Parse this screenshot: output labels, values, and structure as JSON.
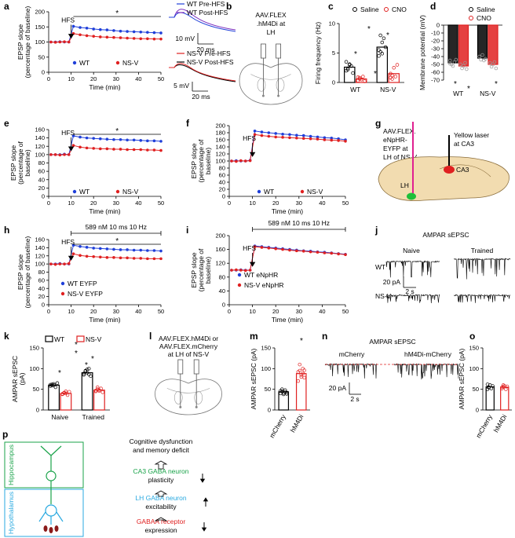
{
  "chart_data": [
    {
      "type": "line",
      "label": "a",
      "xlabel": "Time (min)",
      "ylabel": [
        "EPSP slope",
        "(percentage of baseline)"
      ],
      "event_label": "HFS",
      "significance": "*",
      "xlim": [
        0,
        50
      ],
      "xticks": [
        0,
        10,
        20,
        30,
        40,
        50
      ],
      "ylim": [
        0,
        200
      ],
      "yticks": [
        0,
        50,
        100,
        150,
        200
      ],
      "x": [
        1,
        3,
        5,
        7,
        9,
        11,
        14,
        17,
        20,
        23,
        26,
        29,
        32,
        35,
        38,
        41,
        44,
        47,
        50
      ],
      "series": [
        {
          "name": "WT",
          "color": "#1f3fd9",
          "values": [
            100,
            100,
            101,
            100,
            100,
            152,
            148,
            146,
            143,
            141,
            140,
            138,
            136,
            135,
            134,
            133,
            132,
            131,
            130
          ]
        },
        {
          "name": "NS-V",
          "color": "#e02020",
          "values": [
            100,
            99,
            100,
            101,
            100,
            128,
            124,
            121,
            119,
            117,
            116,
            115,
            114,
            113,
            112,
            111,
            111,
            110,
            110
          ]
        }
      ]
    },
    {
      "type": "bar",
      "label": "c",
      "ylabel": [
        "Firing frequency (Hz)"
      ],
      "categories": [
        "WT",
        "NS-V"
      ],
      "ylim": [
        0,
        10
      ],
      "yticks": [
        0,
        5,
        10
      ],
      "annotations": [
        "*",
        "*",
        "*",
        "*"
      ],
      "series": [
        {
          "name": "Saline",
          "color": "#000000",
          "values": [
            2.6,
            6.0
          ],
          "points": [
            [
              2.0,
              2.4,
              3.0,
              2.8,
              1.6,
              3.5,
              2.2,
              3.1
            ],
            [
              4.5,
              5.2,
              6.8,
              7.5,
              6.0,
              5.5,
              8.0,
              4.9
            ]
          ]
        },
        {
          "name": "CNO",
          "color": "#e02020",
          "values": [
            0.6,
            1.5
          ],
          "points": [
            [
              0.3,
              0.8,
              0.5,
              1.0,
              0.2,
              0.9,
              0.6
            ],
            [
              0.8,
              1.2,
              2.5,
              1.0,
              3.0,
              1.5,
              0.6
            ]
          ]
        }
      ]
    },
    {
      "type": "bar",
      "label": "d",
      "ylabel": [
        "Membrane potential (mV)"
      ],
      "categories": [
        "WT",
        "NS-V"
      ],
      "ylim": [
        -70,
        0
      ],
      "yticks": [
        0,
        -10,
        -20,
        -30,
        -40,
        -50,
        -60,
        -70
      ],
      "annotations": [
        "*",
        "*",
        "*"
      ],
      "series": [
        {
          "name": "Saline",
          "color": "#000000",
          "values": [
            -48,
            -42
          ],
          "points": [
            [
              -45,
              -50,
              -52,
              -47,
              -44,
              -49
            ],
            [
              -40,
              -44,
              -38,
              -45,
              -43
            ]
          ]
        },
        {
          "name": "CNO",
          "color": "#e02020",
          "values": [
            -52,
            -50
          ],
          "points": [
            [
              -50,
              -55,
              -52,
              -48,
              -56
            ],
            [
              -48,
              -53,
              -50,
              -47,
              -55
            ]
          ]
        }
      ]
    },
    {
      "type": "line",
      "label": "e",
      "xlabel": "Time (min)",
      "ylabel": [
        "EPSP slope",
        "(percentage of",
        "baseline)"
      ],
      "event_label": "HFS",
      "significance": "*",
      "xlim": [
        0,
        50
      ],
      "xticks": [
        0,
        10,
        20,
        30,
        40,
        50
      ],
      "ylim": [
        0,
        160
      ],
      "yticks": [
        0,
        20,
        40,
        60,
        80,
        100,
        120,
        140,
        160
      ],
      "x": [
        1,
        3,
        5,
        7,
        9,
        11,
        14,
        17,
        20,
        23,
        26,
        29,
        32,
        35,
        38,
        41,
        44,
        47,
        50
      ],
      "series": [
        {
          "name": "WT",
          "color": "#1f3fd9",
          "values": [
            100,
            100,
            100,
            101,
            100,
            145,
            142,
            140,
            139,
            138,
            137,
            136,
            136,
            135,
            135,
            134,
            133,
            133,
            132
          ]
        },
        {
          "name": "NS-V",
          "color": "#e02020",
          "values": [
            100,
            100,
            99,
            100,
            100,
            122,
            118,
            116,
            115,
            114,
            114,
            113,
            113,
            112,
            112,
            112,
            111,
            111,
            110
          ]
        }
      ]
    },
    {
      "type": "line",
      "label": "f",
      "xlabel": "Time (min)",
      "ylabel": [
        "EPSP slope",
        "(percentage of",
        "baseline)"
      ],
      "event_label": "HFS",
      "xlim": [
        0,
        50
      ],
      "xticks": [
        0,
        10,
        20,
        30,
        40,
        50
      ],
      "ylim": [
        0,
        200
      ],
      "yticks": [
        0,
        20,
        40,
        60,
        80,
        100,
        120,
        140,
        160,
        180,
        200
      ],
      "x": [
        1,
        3,
        5,
        7,
        9,
        11,
        14,
        17,
        20,
        23,
        26,
        29,
        32,
        35,
        38,
        41,
        44,
        47,
        50
      ],
      "series": [
        {
          "name": "WT",
          "color": "#1f3fd9",
          "values": [
            100,
            101,
            100,
            100,
            102,
            185,
            182,
            180,
            178,
            176,
            175,
            173,
            172,
            170,
            168,
            166,
            165,
            163,
            160
          ]
        },
        {
          "name": "NS-V",
          "color": "#e02020",
          "values": [
            100,
            99,
            101,
            100,
            101,
            175,
            172,
            170,
            168,
            167,
            166,
            165,
            164,
            163,
            162,
            160,
            159,
            158,
            156
          ]
        }
      ]
    },
    {
      "type": "line",
      "label": "h",
      "xlabel": "Time (min)",
      "ylabel": [
        "EPSP slope",
        "(percentage of baseline)"
      ],
      "event_label": "HFS",
      "significance": "*",
      "stimulus": "589 nM 10 ms 10 Hz",
      "xlim": [
        0,
        50
      ],
      "xticks": [
        0,
        10,
        20,
        30,
        40,
        50
      ],
      "ylim": [
        0,
        160
      ],
      "yticks": [
        0,
        20,
        40,
        60,
        80,
        100,
        120,
        140,
        160
      ],
      "x": [
        1,
        3,
        5,
        7,
        9,
        11,
        14,
        17,
        20,
        23,
        26,
        29,
        32,
        35,
        38,
        41,
        44,
        47,
        50
      ],
      "series": [
        {
          "name": "WT EYFP",
          "color": "#1f3fd9",
          "values": [
            100,
            100,
            101,
            100,
            100,
            146,
            143,
            141,
            139,
            138,
            137,
            136,
            135,
            135,
            134,
            134,
            133,
            133,
            132
          ]
        },
        {
          "name": "NS-V EYFP",
          "color": "#e02020",
          "values": [
            100,
            99,
            100,
            100,
            101,
            125,
            121,
            119,
            118,
            117,
            116,
            116,
            115,
            115,
            114,
            114,
            113,
            113,
            113
          ]
        }
      ]
    },
    {
      "type": "line",
      "label": "i",
      "xlabel": "Time (min)",
      "ylabel": [
        "EPSP slope",
        "(percentage of",
        "baseline)"
      ],
      "event_label": "HFS",
      "stimulus": "589 nM 10 ms 10 Hz",
      "xlim": [
        0,
        50
      ],
      "xticks": [
        0,
        10,
        20,
        30,
        40,
        50
      ],
      "ylim": [
        0,
        200
      ],
      "yticks": [
        0,
        40,
        80,
        120,
        160,
        200
      ],
      "x": [
        1,
        3,
        5,
        7,
        9,
        11,
        14,
        17,
        20,
        23,
        26,
        29,
        32,
        35,
        38,
        41,
        44,
        47,
        50
      ],
      "series": [
        {
          "name": "WT eNpHR",
          "color": "#1f3fd9",
          "values": [
            100,
            100,
            101,
            100,
            100,
            170,
            168,
            166,
            164,
            162,
            160,
            158,
            156,
            155,
            153,
            152,
            150,
            148,
            146
          ]
        },
        {
          "name": "NS-V eNpHR",
          "color": "#e02020",
          "values": [
            100,
            101,
            100,
            99,
            100,
            168,
            166,
            164,
            162,
            160,
            158,
            156,
            155,
            153,
            152,
            150,
            149,
            147,
            145
          ]
        }
      ]
    },
    {
      "type": "bar",
      "label": "k",
      "ylabel": [
        "AMPAR sEPSC",
        "(pA)"
      ],
      "categories": [
        "Naive",
        "Trained"
      ],
      "ylim": [
        0,
        150
      ],
      "yticks": [
        0,
        50,
        100,
        150
      ],
      "annotations": [
        "*",
        "*",
        "*",
        "*",
        "*"
      ],
      "series": [
        {
          "name": "WT",
          "color": "#000000",
          "values": [
            60,
            90
          ],
          "points": [
            [
              58,
              62,
              60,
              55,
              65,
              61,
              59,
              63
            ],
            [
              85,
              95,
              90,
              100,
              82,
              88,
              94,
              98,
              86
            ]
          ]
        },
        {
          "name": "NS-V",
          "color": "#e02020",
          "values": [
            40,
            48
          ],
          "points": [
            [
              38,
              42,
              40,
              36,
              44,
              39,
              41,
              45
            ],
            [
              45,
              50,
              48,
              52,
              43,
              47,
              55,
              46
            ]
          ]
        }
      ]
    },
    {
      "type": "bar",
      "label": "m",
      "ylabel": [
        "AMPAR sEPSC (pA)"
      ],
      "categories": [
        "mCherry",
        "hM4Di"
      ],
      "colors": [
        "#000000",
        "#e02020"
      ],
      "ylim": [
        0,
        150
      ],
      "yticks": [
        0,
        50,
        100,
        150
      ],
      "annotations": [
        "*"
      ],
      "values": [
        44,
        88
      ],
      "points": [
        [
          40,
          45,
          38,
          48,
          42,
          46,
          50,
          41,
          44,
          39
        ],
        [
          70,
          95,
          85,
          100,
          78,
          92,
          110,
          80,
          88,
          96
        ]
      ]
    },
    {
      "type": "bar",
      "label": "o",
      "ylabel": [
        "AMPAR sEPSC (pA)"
      ],
      "categories": [
        "mCherry",
        "hM4Di"
      ],
      "colors": [
        "#000000",
        "#e02020"
      ],
      "ylim": [
        0,
        150
      ],
      "yticks": [
        0,
        50,
        100,
        150
      ],
      "values": [
        56,
        55
      ],
      "points": [
        [
          50,
          55,
          60,
          52,
          58,
          62,
          54
        ],
        [
          52,
          56,
          58,
          50,
          57,
          55,
          60
        ]
      ]
    }
  ],
  "figure": {
    "a": {
      "legend_wt": [
        "WT Pre-HFS",
        "WT Post-HFS"
      ],
      "legend_nsv": [
        "NS-V Pre-HFS",
        "NS-V Post-HFS"
      ],
      "scale_wt": [
        "10 mV",
        "20 ms"
      ],
      "scale_nsv": [
        "5 mV",
        "20 ms"
      ]
    },
    "b": {
      "label": "b",
      "text": [
        "AAV.FLEX",
        ".hM4Di at",
        "LH"
      ]
    },
    "g": {
      "label": "g",
      "virus": [
        "AAV.FLEX.",
        "eNpHR-",
        "EYFP at",
        "LH of NS-V"
      ],
      "laser": [
        "Yellow laser",
        "at CA3"
      ],
      "ca3": "CA3",
      "lh": "LH"
    },
    "j": {
      "label": "j",
      "title": "AMPAR sEPSC",
      "columns": [
        "Naive",
        "Trained"
      ],
      "rows": [
        "WT",
        "NS-V"
      ],
      "scale": [
        "20 pA",
        "2 s"
      ]
    },
    "l": {
      "label": "l",
      "text": [
        "AAV.FLEX.hM4Di or",
        "AAV.FLEX.mCherry",
        "at LH of NS-V"
      ]
    },
    "n": {
      "label": "n",
      "title": "AMPAR sEPSC",
      "columns": [
        "mCherry",
        "hM4Di-mCherry"
      ],
      "scale": [
        "20 pA",
        "2 s"
      ]
    },
    "p": {
      "label": "p",
      "regions": [
        "Hippocampus",
        "Hypothalamus"
      ],
      "steps": [
        [
          "Cognitive dysfunction",
          "and memory deficit"
        ],
        [
          "CA3 GABA neuron",
          "plasticity"
        ],
        [
          "LH GABA neuron",
          "excitability"
        ],
        [
          "GABAA receptor",
          "expression"
        ]
      ]
    }
  }
}
